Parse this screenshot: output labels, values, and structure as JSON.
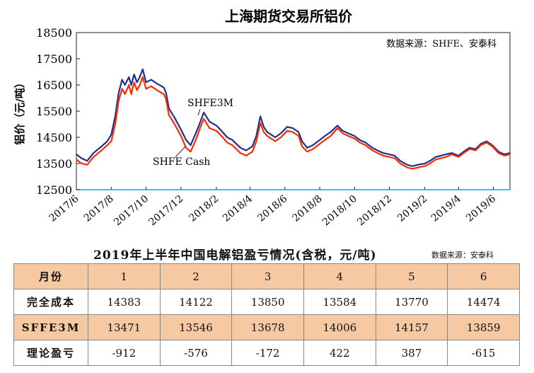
{
  "chart_data": {
    "type": "line",
    "title": "上海期货交易所铝价",
    "source": "数据来源：SHFE、安泰科",
    "ylabel": "铝价（元/吨）",
    "ylim": [
      12500,
      18500
    ],
    "yticks": [
      12500,
      13500,
      14500,
      15500,
      16500,
      17500,
      18500
    ],
    "xlim": [
      "2017-06-01",
      "2019-06-30"
    ],
    "xticks": [
      "2017/6",
      "2017/8",
      "2017/10",
      "2017/12",
      "2018/2",
      "2018/4",
      "2018/6",
      "2018/8",
      "2018/10",
      "2018/12",
      "2019/2",
      "2019/4",
      "2019/6"
    ],
    "xtick_dates": [
      "2017-06-01",
      "2017-08-01",
      "2017-10-01",
      "2017-12-01",
      "2018-02-01",
      "2018-04-01",
      "2018-06-01",
      "2018-08-01",
      "2018-10-01",
      "2018-12-01",
      "2019-02-01",
      "2019-04-01",
      "2019-06-01"
    ],
    "annotations": [
      {
        "text": "SHFE3M",
        "series": "SHFE3M"
      },
      {
        "text": "SHFE Cash",
        "series": "SHFE Cash"
      }
    ],
    "series": [
      {
        "name": "SHFE3M",
        "color": "#1f2f8f",
        "points": [
          [
            "2017-06-01",
            13850
          ],
          [
            "2017-06-10",
            13700
          ],
          [
            "2017-06-20",
            13600
          ],
          [
            "2017-07-01",
            13900
          ],
          [
            "2017-07-15",
            14150
          ],
          [
            "2017-07-25",
            14350
          ],
          [
            "2017-08-01",
            14600
          ],
          [
            "2017-08-08",
            15300
          ],
          [
            "2017-08-14",
            16200
          ],
          [
            "2017-08-20",
            16700
          ],
          [
            "2017-08-25",
            16500
          ],
          [
            "2017-09-01",
            16800
          ],
          [
            "2017-09-05",
            16500
          ],
          [
            "2017-09-10",
            16900
          ],
          [
            "2017-09-15",
            16600
          ],
          [
            "2017-09-20",
            16800
          ],
          [
            "2017-09-25",
            17100
          ],
          [
            "2017-10-01",
            16600
          ],
          [
            "2017-10-10",
            16700
          ],
          [
            "2017-10-20",
            16550
          ],
          [
            "2017-11-01",
            16400
          ],
          [
            "2017-11-05",
            16200
          ],
          [
            "2017-11-10",
            15600
          ],
          [
            "2017-11-20",
            15250
          ],
          [
            "2017-12-01",
            14800
          ],
          [
            "2017-12-10",
            14400
          ],
          [
            "2017-12-18",
            14200
          ],
          [
            "2017-12-28",
            14700
          ],
          [
            "2018-01-05",
            15150
          ],
          [
            "2018-01-10",
            15450
          ],
          [
            "2018-01-20",
            15100
          ],
          [
            "2018-02-01",
            14950
          ],
          [
            "2018-02-10",
            14750
          ],
          [
            "2018-02-20",
            14500
          ],
          [
            "2018-03-01",
            14400
          ],
          [
            "2018-03-15",
            14100
          ],
          [
            "2018-03-25",
            14000
          ],
          [
            "2018-04-05",
            14150
          ],
          [
            "2018-04-12",
            14550
          ],
          [
            "2018-04-19",
            15300
          ],
          [
            "2018-04-25",
            14900
          ],
          [
            "2018-05-01",
            14700
          ],
          [
            "2018-05-15",
            14500
          ],
          [
            "2018-05-25",
            14650
          ],
          [
            "2018-06-05",
            14900
          ],
          [
            "2018-06-15",
            14850
          ],
          [
            "2018-06-25",
            14700
          ],
          [
            "2018-07-01",
            14350
          ],
          [
            "2018-07-10",
            14100
          ],
          [
            "2018-07-20",
            14200
          ],
          [
            "2018-08-01",
            14400
          ],
          [
            "2018-08-10",
            14550
          ],
          [
            "2018-08-20",
            14700
          ],
          [
            "2018-09-01",
            14950
          ],
          [
            "2018-09-10",
            14750
          ],
          [
            "2018-09-20",
            14650
          ],
          [
            "2018-10-01",
            14550
          ],
          [
            "2018-10-10",
            14400
          ],
          [
            "2018-10-20",
            14300
          ],
          [
            "2018-11-01",
            14100
          ],
          [
            "2018-11-10",
            14000
          ],
          [
            "2018-11-20",
            13900
          ],
          [
            "2018-12-01",
            13850
          ],
          [
            "2018-12-10",
            13800
          ],
          [
            "2018-12-20",
            13600
          ],
          [
            "2019-01-01",
            13450
          ],
          [
            "2019-01-10",
            13400
          ],
          [
            "2019-01-20",
            13450
          ],
          [
            "2019-02-01",
            13500
          ],
          [
            "2019-02-10",
            13600
          ],
          [
            "2019-02-20",
            13750
          ],
          [
            "2019-03-01",
            13800
          ],
          [
            "2019-03-10",
            13850
          ],
          [
            "2019-03-20",
            13900
          ],
          [
            "2019-04-01",
            13800
          ],
          [
            "2019-04-10",
            13950
          ],
          [
            "2019-04-20",
            14100
          ],
          [
            "2019-05-01",
            14050
          ],
          [
            "2019-05-10",
            14250
          ],
          [
            "2019-05-20",
            14350
          ],
          [
            "2019-05-30",
            14200
          ],
          [
            "2019-06-10",
            13950
          ],
          [
            "2019-06-20",
            13850
          ],
          [
            "2019-06-30",
            13900
          ]
        ]
      },
      {
        "name": "SHFE Cash",
        "color": "#ff2a00",
        "points": [
          [
            "2017-06-01",
            13650
          ],
          [
            "2017-06-10",
            13500
          ],
          [
            "2017-06-20",
            13450
          ],
          [
            "2017-07-01",
            13750
          ],
          [
            "2017-07-15",
            14000
          ],
          [
            "2017-07-25",
            14200
          ],
          [
            "2017-08-01",
            14350
          ],
          [
            "2017-08-08",
            15000
          ],
          [
            "2017-08-14",
            15900
          ],
          [
            "2017-08-20",
            16350
          ],
          [
            "2017-08-25",
            16150
          ],
          [
            "2017-09-01",
            16500
          ],
          [
            "2017-09-05",
            16150
          ],
          [
            "2017-09-10",
            16600
          ],
          [
            "2017-09-15",
            16300
          ],
          [
            "2017-09-20",
            16500
          ],
          [
            "2017-09-25",
            16800
          ],
          [
            "2017-10-01",
            16350
          ],
          [
            "2017-10-10",
            16450
          ],
          [
            "2017-10-20",
            16300
          ],
          [
            "2017-11-01",
            16150
          ],
          [
            "2017-11-05",
            15950
          ],
          [
            "2017-11-10",
            15350
          ],
          [
            "2017-11-20",
            15000
          ],
          [
            "2017-12-01",
            14550
          ],
          [
            "2017-12-10",
            14100
          ],
          [
            "2017-12-18",
            13950
          ],
          [
            "2017-12-28",
            14450
          ],
          [
            "2018-01-05",
            14950
          ],
          [
            "2018-01-10",
            15200
          ],
          [
            "2018-01-20",
            14850
          ],
          [
            "2018-02-01",
            14750
          ],
          [
            "2018-02-10",
            14550
          ],
          [
            "2018-02-20",
            14300
          ],
          [
            "2018-03-01",
            14200
          ],
          [
            "2018-03-15",
            13900
          ],
          [
            "2018-03-25",
            13800
          ],
          [
            "2018-04-05",
            13950
          ],
          [
            "2018-04-12",
            14350
          ],
          [
            "2018-04-19",
            15050
          ],
          [
            "2018-04-25",
            14700
          ],
          [
            "2018-05-01",
            14550
          ],
          [
            "2018-05-15",
            14350
          ],
          [
            "2018-05-25",
            14500
          ],
          [
            "2018-06-05",
            14750
          ],
          [
            "2018-06-15",
            14700
          ],
          [
            "2018-06-25",
            14550
          ],
          [
            "2018-07-01",
            14150
          ],
          [
            "2018-07-10",
            13950
          ],
          [
            "2018-07-20",
            14050
          ],
          [
            "2018-08-01",
            14250
          ],
          [
            "2018-08-10",
            14400
          ],
          [
            "2018-08-20",
            14550
          ],
          [
            "2018-09-01",
            14850
          ],
          [
            "2018-09-10",
            14650
          ],
          [
            "2018-09-20",
            14550
          ],
          [
            "2018-10-01",
            14450
          ],
          [
            "2018-10-10",
            14300
          ],
          [
            "2018-10-20",
            14200
          ],
          [
            "2018-11-01",
            14000
          ],
          [
            "2018-11-10",
            13900
          ],
          [
            "2018-11-20",
            13800
          ],
          [
            "2018-12-01",
            13750
          ],
          [
            "2018-12-10",
            13700
          ],
          [
            "2018-12-20",
            13500
          ],
          [
            "2019-01-01",
            13350
          ],
          [
            "2019-01-10",
            13300
          ],
          [
            "2019-01-20",
            13350
          ],
          [
            "2019-02-01",
            13400
          ],
          [
            "2019-02-10",
            13500
          ],
          [
            "2019-02-20",
            13650
          ],
          [
            "2019-03-01",
            13700
          ],
          [
            "2019-03-10",
            13750
          ],
          [
            "2019-03-20",
            13850
          ],
          [
            "2019-04-01",
            13750
          ],
          [
            "2019-04-10",
            13900
          ],
          [
            "2019-04-20",
            14050
          ],
          [
            "2019-05-01",
            14000
          ],
          [
            "2019-05-10",
            14200
          ],
          [
            "2019-05-20",
            14300
          ],
          [
            "2019-05-30",
            14150
          ],
          [
            "2019-06-10",
            13900
          ],
          [
            "2019-06-20",
            13800
          ],
          [
            "2019-06-30",
            13850
          ]
        ]
      }
    ]
  },
  "table": {
    "title": "2019年上半年中国电解铝盈亏情况(含税，元/吨)",
    "source": "数据来源：安泰科",
    "header_label": "月份",
    "months": [
      "1",
      "2",
      "3",
      "4",
      "5",
      "6"
    ],
    "rows": [
      {
        "label": "完全成本",
        "values": [
          "14383",
          "14122",
          "13850",
          "13584",
          "13770",
          "14474"
        ]
      },
      {
        "label": "SFFE3M",
        "values": [
          "13471",
          "13546",
          "13678",
          "14006",
          "14157",
          "13859"
        ]
      },
      {
        "label": "理论盈亏",
        "values": [
          "-912",
          "-576",
          "-172",
          "422",
          "387",
          "-615"
        ]
      }
    ],
    "shade_color": "#f6c9a3"
  }
}
